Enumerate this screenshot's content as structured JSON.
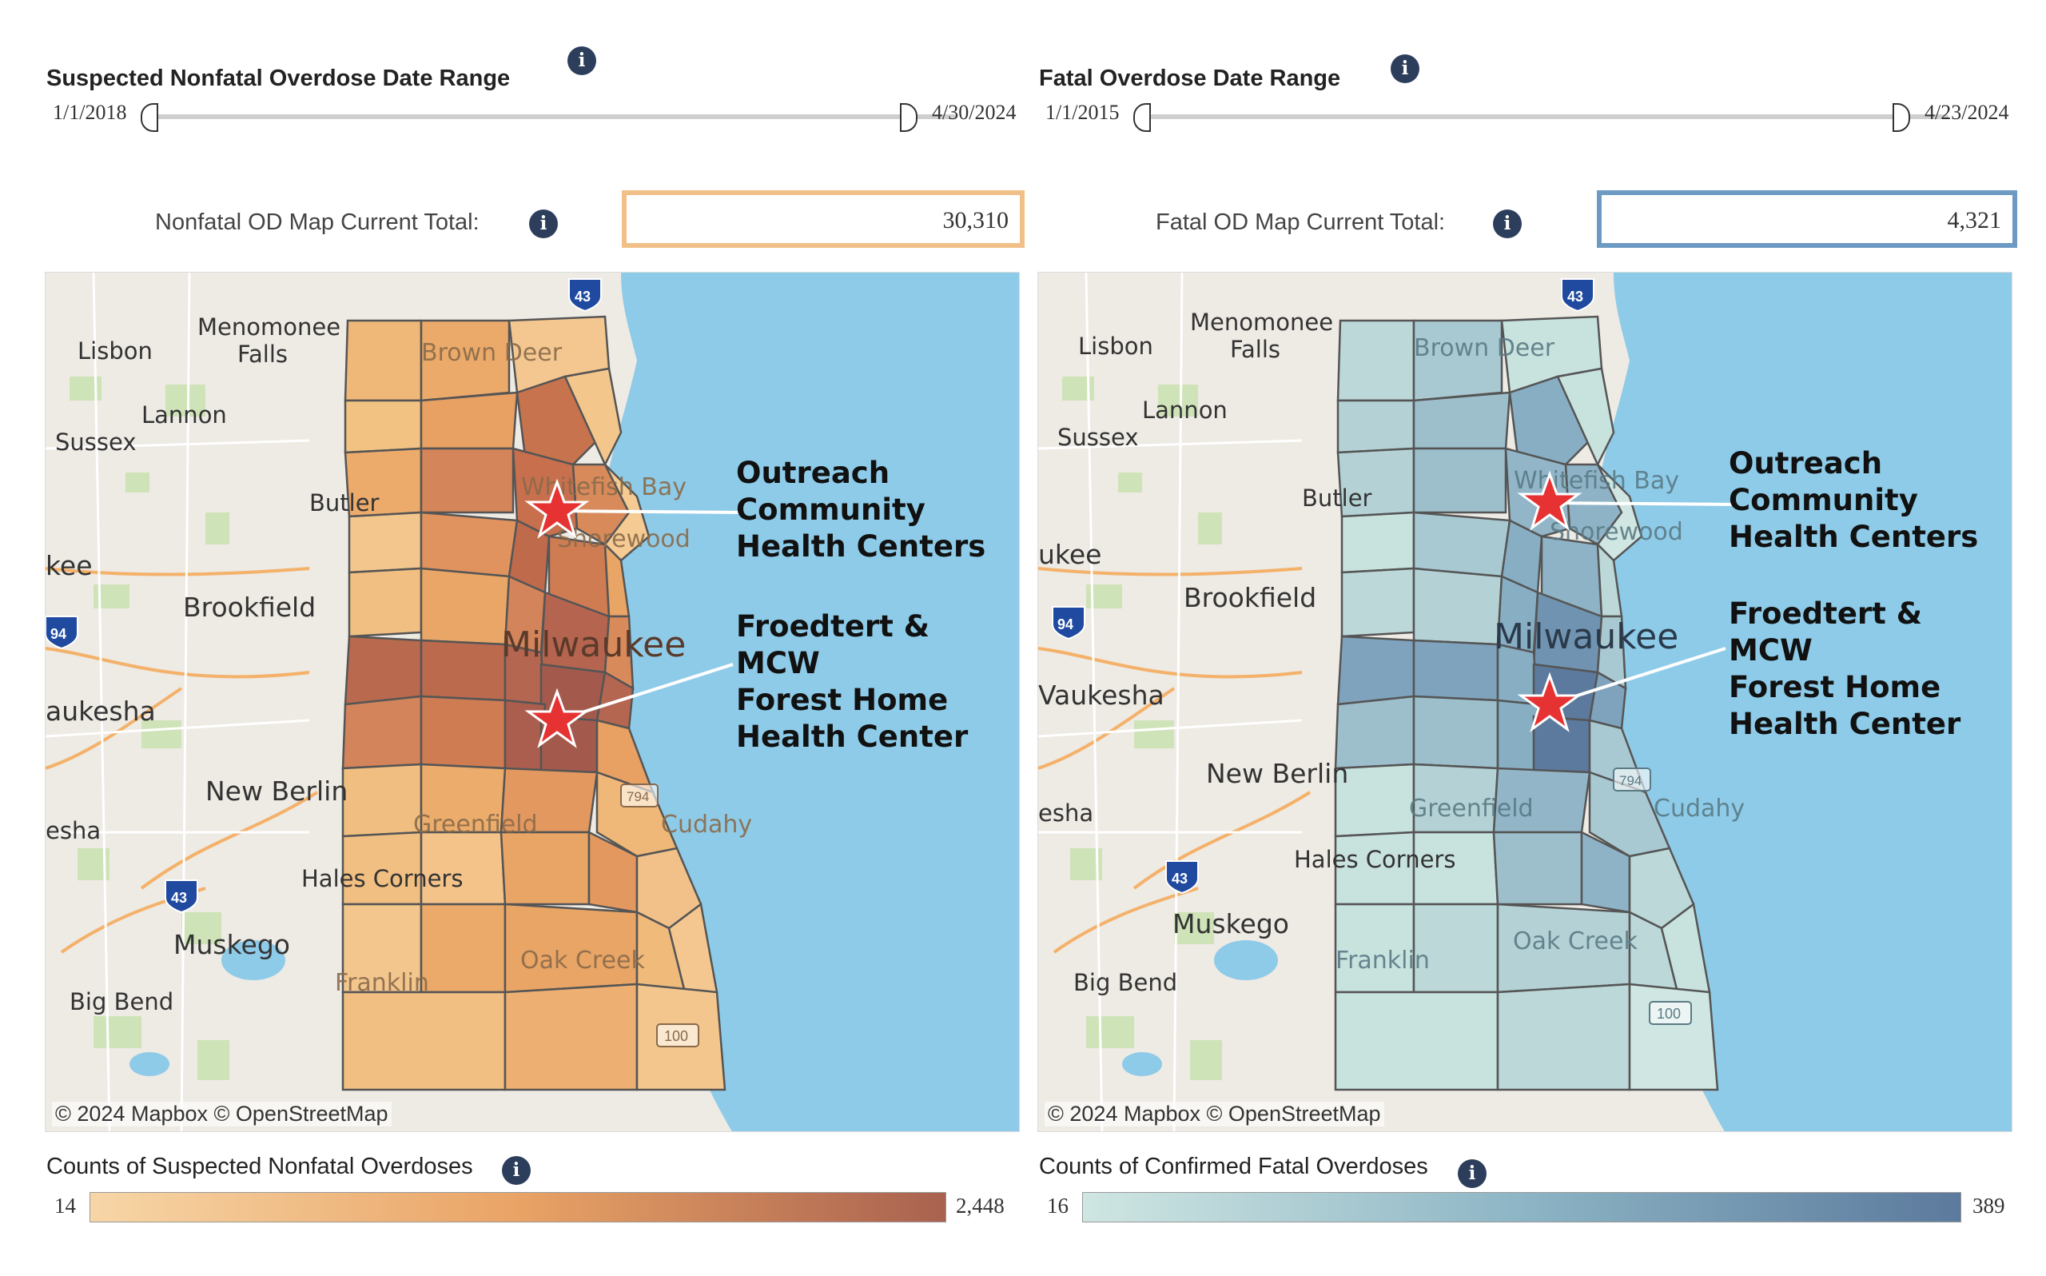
{
  "left": {
    "range_title": "Suspected Nonfatal Overdose Date Range",
    "range_start": "1/1/2018",
    "range_end": "4/30/2024",
    "total_label": "Nonfatal OD Map Current Total:",
    "total_value": "30,310",
    "total_box_color": "#f1c089",
    "legend_title": "Counts of Suspected Nonfatal Overdoses",
    "legend_min": "14",
    "legend_max": "2,448",
    "legend_colors": [
      "#f7d6a7",
      "#e9a365",
      "#a9624f"
    ],
    "attribution": "© 2024 Mapbox  © OpenStreetMap",
    "callout_1": "Outreach\nCommunity\nHealth Centers",
    "callout_2": "Froedtert & MCW\nForest Home\nHealth Center"
  },
  "right": {
    "range_title": "Fatal Overdose Date Range",
    "range_start": "1/1/2015",
    "range_end": "4/23/2024",
    "total_label": "Fatal OD Map Current Total:",
    "total_value": "4,321",
    "total_box_color": "#6d9ac3",
    "legend_title": "Counts of Confirmed Fatal Overdoses",
    "legend_min": "16",
    "legend_max": "389",
    "legend_colors": [
      "#cfe6e2",
      "#8db5c5",
      "#5c7a9d"
    ],
    "attribution": "© 2024 Mapbox  © OpenStreetMap",
    "callout_1": "Outreach\nCommunity\nHealth Centers",
    "callout_2": "Froedtert & MCW\nForest Home\nHealth Center"
  },
  "map_labels": {
    "menomonee_falls": "Menomonee\nFalls",
    "lisbon": "Lisbon",
    "lannon": "Lannon",
    "sussex": "Sussex",
    "brown_deer": "Brown Deer",
    "whitefish_bay": "Whitefish Bay",
    "shorewood": "Shorewood",
    "butler": "Butler",
    "brookfield": "Brookfield",
    "milwaukee": "Milwaukee",
    "waukesha_left": "aukesha",
    "waukesha_right": "Vaukesha",
    "ukee_left": "kee",
    "ukee_right": "ukee",
    "new_berlin": "New Berlin",
    "sha": "esha",
    "greenfield": "Greenfield",
    "cudahy": "Cudahy",
    "hales_corners": "Hales Corners",
    "muskego": "Muskego",
    "oak_creek": "Oak Creek",
    "franklin": "Franklin",
    "big_bend": "Big Bend",
    "hw43": "43",
    "hw94": "94",
    "hw794": "794",
    "hw100": "100"
  }
}
